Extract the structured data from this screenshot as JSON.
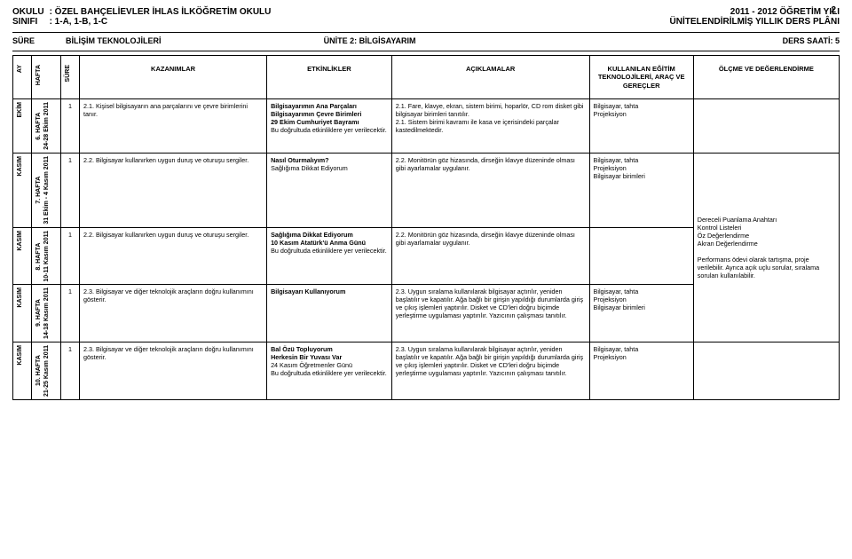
{
  "header": {
    "okulu_label": "OKULU",
    "okulu_value": ": ÖZEL BAHÇELİEVLER İHLAS İLKÖĞRETİM OKULU",
    "sinif_label": "SINIFI",
    "sinif_value": ": 1-A, 1-B, 1-C",
    "year": "2011 - 2012 ÖĞRETİM YILI",
    "plan": "ÜNİTELENDİRİLMİŞ YILLIK DERS PLÂNI",
    "page": "2"
  },
  "meta": {
    "sure_label": "SÜRE",
    "subject": "BİLİŞİM TEKNOLOJİLERİ",
    "unit": "ÜNİTE 2: BİLGİSAYARIM",
    "hours": "DERS SAATİ: 5"
  },
  "columns": {
    "ay": "AY",
    "hafta": "HAFTA",
    "sure": "SÜRE",
    "kaz": "KAZANIMLAR",
    "etk": "ETKİNLİKLER",
    "acik": "AÇIKLAMALAR",
    "arac": "KULLANILAN EĞİTİM TEKNOLOJİLERİ, ARAÇ VE GEREÇLER",
    "olcme": "ÖLÇME VE DEĞERLENDİRME"
  },
  "rows": [
    {
      "ay": "EKİM",
      "hafta": "6. HAFTA\n24-28 Ekim 2011",
      "sure": "1",
      "kaz": "2.1. Kişisel bilgisayarın ana parçalarını ve çevre birimlerini tanır.",
      "etk": "Bilgisayarımın Ana Parçaları\n\nBilgisayarımın Çevre Birimleri\n29 Ekim Cumhuriyet Bayramı\nBu doğrultuda etkinliklere yer verilecektir.",
      "acik": "2.1. Fare, klavye, ekran, sistem birimi, hoparlör, CD rom disket gibi bilgisayar birimleri tanıtılır.\n2.1. Sistem birimi kavramı ile kasa ve içerisindeki parçalar kastedilmektedir.",
      "arac": "Bilgisayar, tahta\nProjeksiyon",
      "olcme": ""
    },
    {
      "ay": "KASIM",
      "hafta": "7. HAFTA\n31 Ekim - 4 Kasım 2011",
      "sure": "1",
      "kaz": "2.2. Bilgisayar kullanırken uygun duruş ve oturuşu sergiler.",
      "etk": "Nasıl Oturmalıyım?\n\nSağlığıma Dikkat Ediyorum",
      "acik": "2.2. Monitörün göz hizasında, dirseğin klavye düzeninde olması gibi ayarlamalar uygulanır.",
      "arac": "Bilgisayar, tahta\nProjeksiyon\nBilgisayar birimleri",
      "olcme": ""
    },
    {
      "ay": "KASIM",
      "hafta": "8. HAFTA\n10-11 Kasım 2011",
      "sure": "1",
      "kaz": "2.2. Bilgisayar kullanırken uygun duruş ve oturuşu sergiler.",
      "etk": "Sağlığıma Dikkat Ediyorum\n10 Kasım Atatürk'ü Anma Günü\nBu doğrultuda etkinliklere yer verilecektir.",
      "acik": "2.2. Monitörün göz hizasında, dirseğin klavye düzeninde olması gibi ayarlamalar uygulanır.",
      "arac": "",
      "olcme": "Dereceli Puanlama Anahtarı\nKontrol Listeleri\nÖz Değerlendirme\nAkran Değerlendirme\n\nPerformans ödevi olarak tartışma, proje verilebilir. Ayrıca açık uçlu sorular, sıralama soruları kullanılabilir."
    },
    {
      "ay": "KASIM",
      "hafta": "9. HAFTA\n14-18 Kasım 2011",
      "sure": "1",
      "kaz": "2.3. Bilgisayar ve diğer teknolojik araçların doğru kullanımını gösterir.",
      "etk": "Bilgisayarı Kullanıyorum",
      "acik": "2.3. Uygun sıralama kullanılarak bilgisayar açtırılır, yeniden başlatılır ve kapatılır. Ağa bağlı bir girişin yapıldığı durumlarda giriş ve çıkış işlemleri yaptırılır. Disket ve CD'leri doğru biçimde yerleştirme uygulaması yaptırılır. Yazıcının çalışması tanıtılır.",
      "arac": "Bilgisayar, tahta\nProjeksiyon\nBilgisayar birimleri",
      "olcme": ""
    },
    {
      "ay": "KASIM",
      "hafta": "10. HAFTA\n21-25 Kasım 2011",
      "sure": "1",
      "kaz": "2.3. Bilgisayar ve diğer teknolojik araçların doğru kullanımını gösterir.",
      "etk": "Bal Özü Topluyorum\nHerkesin Bir Yuvası Var\n24 Kasım Öğretmenler Günü\nBu doğrultuda etkinliklere yer verilecektir.",
      "acik": "2.3. Uygun sıralama kullanılarak bilgisayar açtırılır, yeniden başlatılır ve kapatılır. Ağa bağlı bir girişin yapıldığı durumlarda giriş ve çıkış işlemleri yaptırılır. Disket ve CD'leri doğru biçimde yerleştirme uygulaması yaptırılır. Yazıcının çalışması tanıtılır.",
      "arac": "Bilgisayar, tahta\nProjeksiyon",
      "olcme": ""
    }
  ]
}
